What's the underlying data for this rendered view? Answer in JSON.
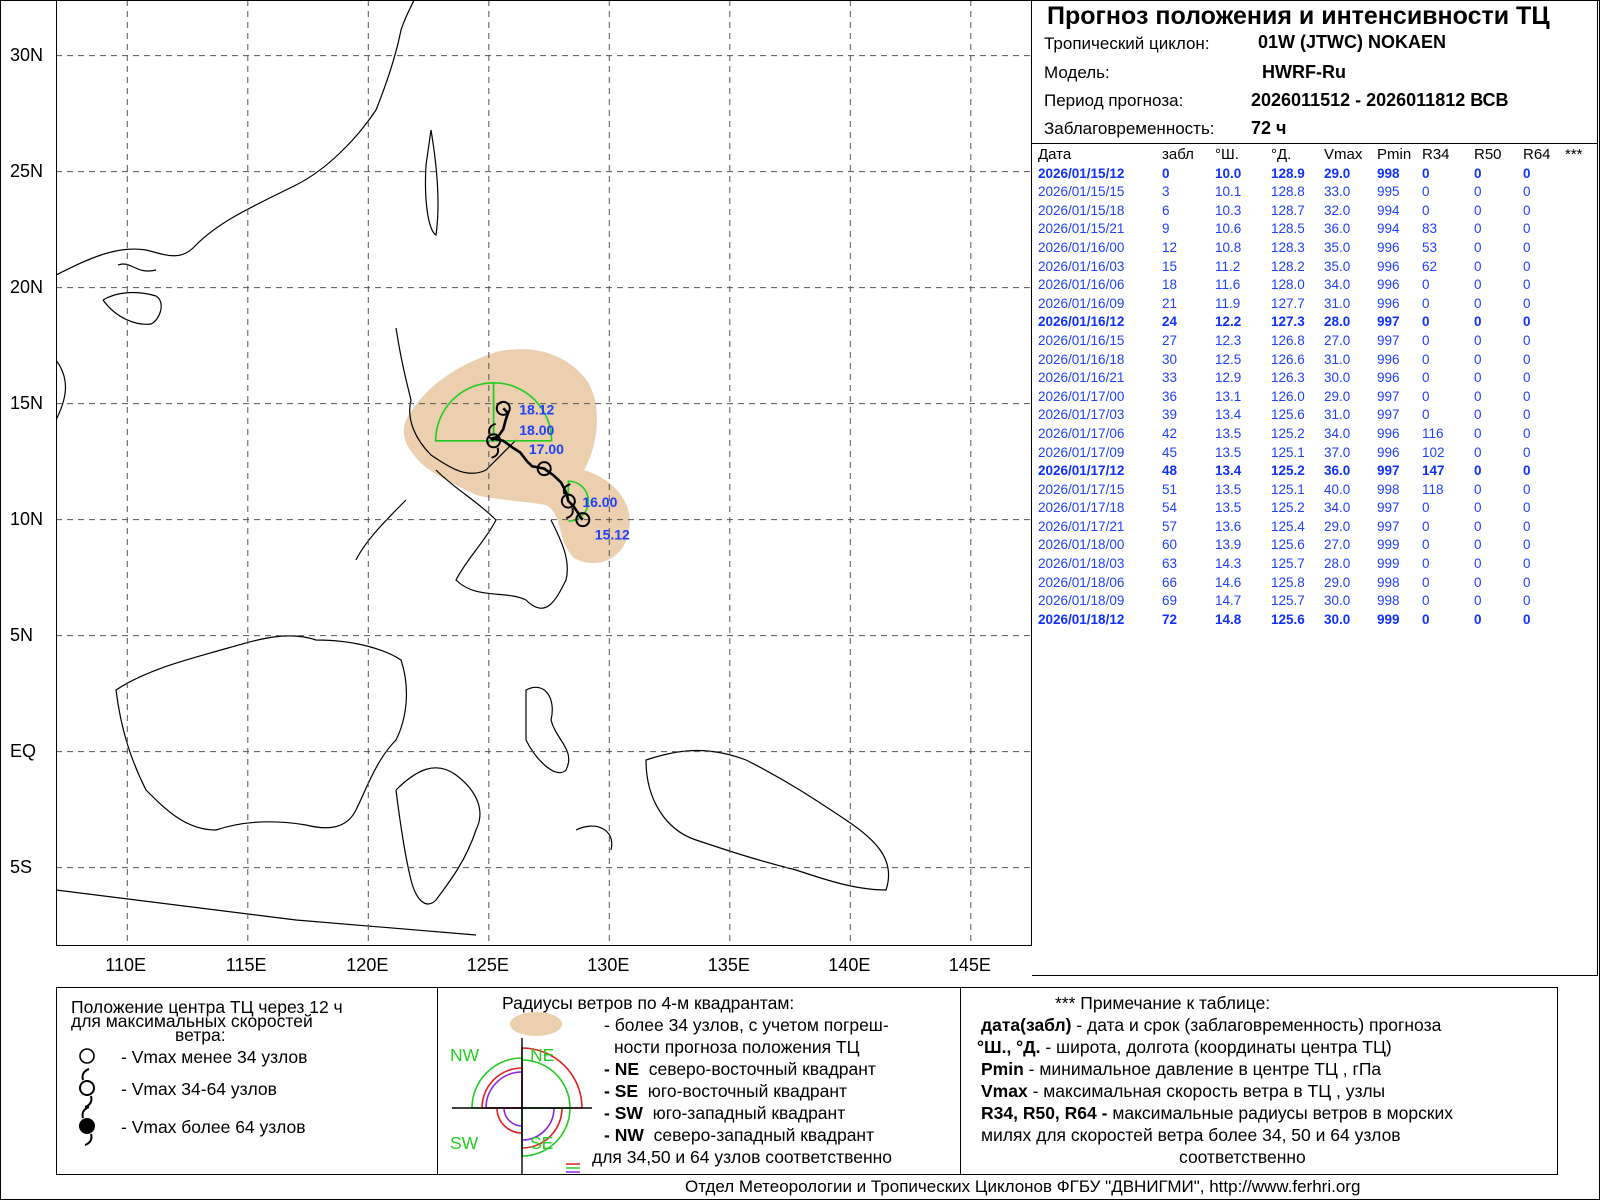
{
  "map": {
    "lat_labels": [
      "30N",
      "25N",
      "20N",
      "15N",
      "10N",
      "5N",
      "EQ",
      "5S"
    ],
    "lon_labels": [
      "110E",
      "115E",
      "120E",
      "125E",
      "130E",
      "135E",
      "140E",
      "145E"
    ],
    "track_labels": [
      "18.12",
      "18.00",
      "17.00",
      "16.00",
      "15.12"
    ],
    "track_color": "#000000",
    "uncertainty_color": "#ebcfae",
    "r34_color": "#22cc22",
    "label_color": "#1f3fff"
  },
  "header": {
    "title": "Прогноз положения и интенсивности ТЦ",
    "cyclone_label": "Тропический циклон:",
    "cyclone_value": "01W (JTWC)  NOKAEN",
    "model_label": "Модель:",
    "model_value": "HWRF-Ru",
    "period_label": "Период прогноза:",
    "period_value": "2026011512 - 2026011812 ВСВ",
    "lead_label": "Заблаговременность:",
    "lead_value": "72 ч"
  },
  "table": {
    "columns": [
      "Дата",
      "забл",
      "°Ш.",
      "°Д.",
      "Vmax",
      "Pmin",
      "R34",
      "R50",
      "R64",
      "***"
    ],
    "rows": [
      {
        "date": "2026/01/15/12",
        "lead": "0",
        "lat": "10.0",
        "lon": "128.9",
        "vmax": "29.0",
        "pmin": "998",
        "r34": "0",
        "r50": "0",
        "r64": "0",
        "bold": true
      },
      {
        "date": "2026/01/15/15",
        "lead": "3",
        "lat": "10.1",
        "lon": "128.8",
        "vmax": "33.0",
        "pmin": "995",
        "r34": "0",
        "r50": "0",
        "r64": "0"
      },
      {
        "date": "2026/01/15/18",
        "lead": "6",
        "lat": "10.3",
        "lon": "128.7",
        "vmax": "32.0",
        "pmin": "994",
        "r34": "0",
        "r50": "0",
        "r64": "0"
      },
      {
        "date": "2026/01/15/21",
        "lead": "9",
        "lat": "10.6",
        "lon": "128.5",
        "vmax": "36.0",
        "pmin": "994",
        "r34": "83",
        "r50": "0",
        "r64": "0"
      },
      {
        "date": "2026/01/16/00",
        "lead": "12",
        "lat": "10.8",
        "lon": "128.3",
        "vmax": "35.0",
        "pmin": "996",
        "r34": "53",
        "r50": "0",
        "r64": "0"
      },
      {
        "date": "2026/01/16/03",
        "lead": "15",
        "lat": "11.2",
        "lon": "128.2",
        "vmax": "35.0",
        "pmin": "996",
        "r34": "62",
        "r50": "0",
        "r64": "0"
      },
      {
        "date": "2026/01/16/06",
        "lead": "18",
        "lat": "11.6",
        "lon": "128.0",
        "vmax": "34.0",
        "pmin": "996",
        "r34": "0",
        "r50": "0",
        "r64": "0"
      },
      {
        "date": "2026/01/16/09",
        "lead": "21",
        "lat": "11.9",
        "lon": "127.7",
        "vmax": "31.0",
        "pmin": "996",
        "r34": "0",
        "r50": "0",
        "r64": "0"
      },
      {
        "date": "2026/01/16/12",
        "lead": "24",
        "lat": "12.2",
        "lon": "127.3",
        "vmax": "28.0",
        "pmin": "997",
        "r34": "0",
        "r50": "0",
        "r64": "0",
        "bold": true
      },
      {
        "date": "2026/01/16/15",
        "lead": "27",
        "lat": "12.3",
        "lon": "126.8",
        "vmax": "27.0",
        "pmin": "997",
        "r34": "0",
        "r50": "0",
        "r64": "0"
      },
      {
        "date": "2026/01/16/18",
        "lead": "30",
        "lat": "12.5",
        "lon": "126.6",
        "vmax": "31.0",
        "pmin": "996",
        "r34": "0",
        "r50": "0",
        "r64": "0"
      },
      {
        "date": "2026/01/16/21",
        "lead": "33",
        "lat": "12.9",
        "lon": "126.3",
        "vmax": "30.0",
        "pmin": "996",
        "r34": "0",
        "r50": "0",
        "r64": "0"
      },
      {
        "date": "2026/01/17/00",
        "lead": "36",
        "lat": "13.1",
        "lon": "126.0",
        "vmax": "29.0",
        "pmin": "997",
        "r34": "0",
        "r50": "0",
        "r64": "0"
      },
      {
        "date": "2026/01/17/03",
        "lead": "39",
        "lat": "13.4",
        "lon": "125.6",
        "vmax": "31.0",
        "pmin": "997",
        "r34": "0",
        "r50": "0",
        "r64": "0"
      },
      {
        "date": "2026/01/17/06",
        "lead": "42",
        "lat": "13.5",
        "lon": "125.2",
        "vmax": "34.0",
        "pmin": "996",
        "r34": "116",
        "r50": "0",
        "r64": "0"
      },
      {
        "date": "2026/01/17/09",
        "lead": "45",
        "lat": "13.5",
        "lon": "125.1",
        "vmax": "37.0",
        "pmin": "996",
        "r34": "102",
        "r50": "0",
        "r64": "0"
      },
      {
        "date": "2026/01/17/12",
        "lead": "48",
        "lat": "13.4",
        "lon": "125.2",
        "vmax": "36.0",
        "pmin": "997",
        "r34": "147",
        "r50": "0",
        "r64": "0",
        "bold": true
      },
      {
        "date": "2026/01/17/15",
        "lead": "51",
        "lat": "13.5",
        "lon": "125.1",
        "vmax": "40.0",
        "pmin": "998",
        "r34": "118",
        "r50": "0",
        "r64": "0"
      },
      {
        "date": "2026/01/17/18",
        "lead": "54",
        "lat": "13.5",
        "lon": "125.2",
        "vmax": "34.0",
        "pmin": "997",
        "r34": "0",
        "r50": "0",
        "r64": "0"
      },
      {
        "date": "2026/01/17/21",
        "lead": "57",
        "lat": "13.6",
        "lon": "125.4",
        "vmax": "29.0",
        "pmin": "997",
        "r34": "0",
        "r50": "0",
        "r64": "0"
      },
      {
        "date": "2026/01/18/00",
        "lead": "60",
        "lat": "13.9",
        "lon": "125.6",
        "vmax": "27.0",
        "pmin": "999",
        "r34": "0",
        "r50": "0",
        "r64": "0"
      },
      {
        "date": "2026/01/18/03",
        "lead": "63",
        "lat": "14.3",
        "lon": "125.7",
        "vmax": "28.0",
        "pmin": "999",
        "r34": "0",
        "r50": "0",
        "r64": "0"
      },
      {
        "date": "2026/01/18/06",
        "lead": "66",
        "lat": "14.6",
        "lon": "125.8",
        "vmax": "29.0",
        "pmin": "998",
        "r34": "0",
        "r50": "0",
        "r64": "0"
      },
      {
        "date": "2026/01/18/09",
        "lead": "69",
        "lat": "14.7",
        "lon": "125.7",
        "vmax": "30.0",
        "pmin": "998",
        "r34": "0",
        "r50": "0",
        "r64": "0"
      },
      {
        "date": "2026/01/18/12",
        "lead": "72",
        "lat": "14.8",
        "lon": "125.6",
        "vmax": "30.0",
        "pmin": "999",
        "r34": "0",
        "r50": "0",
        "r64": "0",
        "bold": true
      }
    ]
  },
  "legend_left": {
    "title_line1": "Положение центра ТЦ через 12 ч",
    "title_line2": "для максимальных скоростей",
    "title_line3": "ветра:",
    "item1": "- Vmax  менее 34 узлов",
    "item2": "- Vmax  34-64 узлов",
    "item3": "- Vmax  более 64 узлов"
  },
  "legend_mid": {
    "title": "Радиусы ветров по 4-м квадрантам:",
    "line1": "- более 34 узлов, с учетом погреш-",
    "line2": "ности прогноза положения ТЦ",
    "ne_key": "- NE",
    "ne_text": "северо-восточный квадрант",
    "se_key": "- SE",
    "se_text": "юго-восточный квадрант",
    "sw_key": "- SW",
    "sw_text": "юго-западный квадрант",
    "nw_key": "- NW",
    "nw_text": "северо-западный квадрант",
    "last": "для 34,50 и 64 узлов соответственно",
    "q_ne": "NE",
    "q_se": "SE",
    "q_sw": "SW",
    "q_nw": "NW"
  },
  "legend_right": {
    "title": "*** Примечание к таблице:",
    "l1_key": "дата(забл)",
    "l1_text": " - дата и срок (заблаговременность) прогноза",
    "l2_key": "°Ш., °Д.",
    "l2_text": " - широта, долгота   (координаты центра ТЦ)",
    "l3_key": "Pmin",
    "l3_text": "  - минимальное давление в центре ТЦ , гПа",
    "l4_key": "Vmax",
    "l4_text": "   -  максимальная скорость ветра в ТЦ , узлы",
    "l5_key": "R34, R50, R64 -",
    "l5_text": "  максимальные радиусы ветров в морских",
    "l6": "милях для скоростей ветра более 34, 50 и 64 узлов",
    "l7": "соответственно"
  },
  "footer": "Отдел Метеорологии и Тропических Циклонов ФГБУ \"ДВНИГМИ\",  http://www.ferhri.org"
}
